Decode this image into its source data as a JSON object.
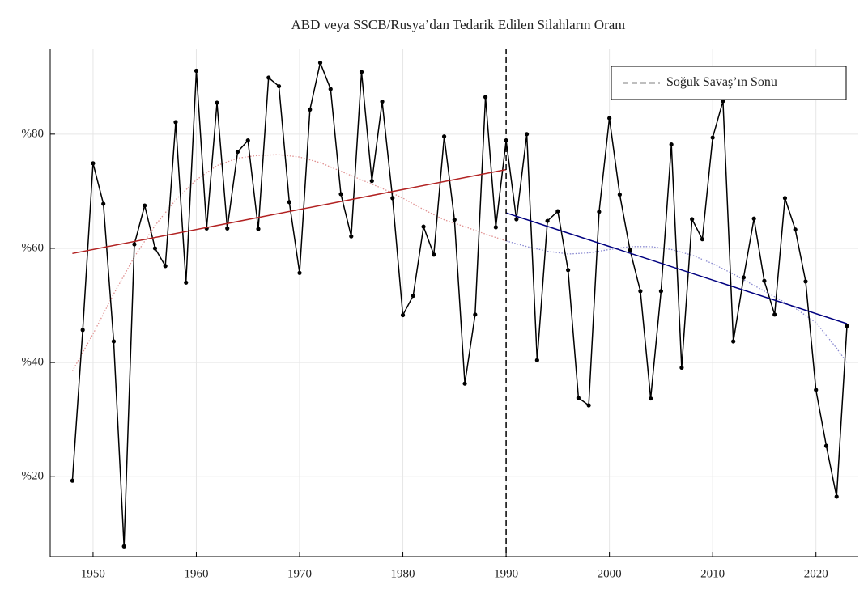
{
  "chart_data": {
    "type": "line",
    "title": "ABD veya SSCB/Rusya’dan Tedarik Edilen Silahların Oranı",
    "xlim": [
      1945.85,
      2024.1
    ],
    "ylim": [
      6,
      95
    ],
    "xticks": [
      1950,
      1960,
      1970,
      1980,
      1990,
      2000,
      2010,
      2020
    ],
    "yticks": [
      {
        "value": 20,
        "label": "%20"
      },
      {
        "value": 40,
        "label": "%40"
      },
      {
        "value": 60,
        "label": "%60"
      },
      {
        "value": 80,
        "label": "%80"
      }
    ],
    "grid": true,
    "legend": "upper right",
    "vline": {
      "x": 1990,
      "name": "Soğuk Savaş’ın Sonu",
      "color": "#000000"
    },
    "series": [
      {
        "color": "#e09090",
        "style": "dotted",
        "x": [
          1948,
          1950,
          1952,
          1954,
          1956,
          1958,
          1960,
          1962,
          1964,
          1966,
          1968,
          1970,
          1972,
          1974,
          1976,
          1978,
          1980,
          1982,
          1984,
          1986,
          1988,
          1990
        ],
        "values": [
          38.5,
          45,
          52,
          58.5,
          64,
          68.5,
          72,
          74.5,
          75.8,
          76.3,
          76.4,
          76.0,
          75.0,
          73.5,
          72.0,
          70.5,
          68.8,
          66.8,
          65.0,
          63.8,
          62.5,
          61.3
        ]
      },
      {
        "color": "#8888d0",
        "style": "dotted",
        "x": [
          1990,
          1992,
          1994,
          1996,
          1998,
          2000,
          2002,
          2004,
          2006,
          2008,
          2010,
          2012,
          2014,
          2016,
          2018,
          2020,
          2022,
          2023
        ],
        "values": [
          61.3,
          60.3,
          59.5,
          59.0,
          59.2,
          59.8,
          60.3,
          60.3,
          59.8,
          58.8,
          57.3,
          55.5,
          53.5,
          51.5,
          49.5,
          47,
          42.5,
          40
        ]
      },
      {
        "color": "#000000",
        "style": "markers",
        "x": [
          1948,
          1949,
          1950,
          1951,
          1952,
          1953,
          1954,
          1955,
          1956,
          1957,
          1958,
          1959,
          1960,
          1961,
          1962,
          1963,
          1964,
          1965,
          1966,
          1967,
          1968,
          1969,
          1970,
          1971,
          1972,
          1973,
          1974,
          1975,
          1976,
          1977,
          1978,
          1979,
          1980,
          1981,
          1982,
          1983,
          1984,
          1985,
          1986,
          1987,
          1988,
          1989,
          1990,
          1991,
          1992,
          1993,
          1994,
          1995,
          1996,
          1997,
          1998,
          1999,
          2000,
          2001,
          2002,
          2003,
          2004,
          2005,
          2006,
          2007,
          2008,
          2009,
          2010,
          2011,
          2012,
          2013,
          2014,
          2015,
          2016,
          2017,
          2018,
          2019,
          2020,
          2021,
          2022,
          2023
        ],
        "values": [
          19.3,
          45.7,
          74.9,
          67.8,
          43.7,
          7.8,
          60.7,
          67.5,
          60.0,
          56.9,
          82.1,
          54.0,
          91.1,
          63.5,
          85.5,
          63.5,
          76.9,
          78.9,
          63.4,
          89.9,
          88.4,
          68.1,
          55.7,
          84.3,
          92.5,
          87.9,
          69.5,
          62.1,
          90.9,
          71.8,
          85.7,
          68.8,
          48.3,
          51.7,
          63.8,
          58.9,
          79.6,
          65.0,
          36.3,
          48.4,
          86.5,
          63.7,
          78.9,
          65.1,
          80.0,
          40.4,
          64.8,
          66.5,
          56.2,
          33.8,
          32.5,
          66.4,
          82.8,
          69.4,
          59.7,
          52.5,
          33.7,
          52.5,
          78.2,
          39.1,
          65.1,
          61.6,
          79.4,
          85.8,
          43.7,
          54.9,
          65.2,
          54.3,
          48.4,
          68.8,
          63.3,
          54.2,
          35.2,
          25.4,
          16.5,
          46.4
        ]
      },
      {
        "color": "#b22222",
        "style": "solid",
        "x": [
          1948,
          1990
        ],
        "values": [
          59.1,
          73.8
        ]
      },
      {
        "color": "#000080",
        "style": "solid",
        "x": [
          1990,
          2023
        ],
        "values": [
          66.2,
          46.8
        ]
      }
    ]
  }
}
